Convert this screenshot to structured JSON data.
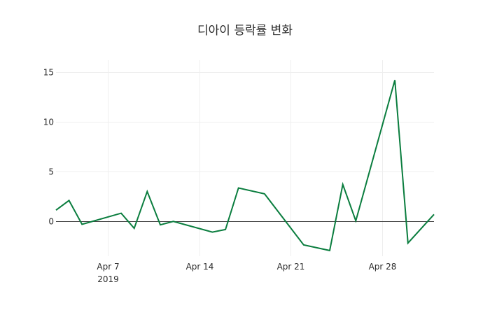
{
  "chart_data": {
    "type": "line",
    "title": "디아이 등락률 변화",
    "xlabel": "",
    "ylabel": "",
    "x": [
      "2019-04-03",
      "2019-04-04",
      "2019-04-05",
      "2019-04-08",
      "2019-04-09",
      "2019-04-10",
      "2019-04-11",
      "2019-04-12",
      "2019-04-15",
      "2019-04-16",
      "2019-04-17",
      "2019-04-19",
      "2019-04-22",
      "2019-04-24",
      "2019-04-25",
      "2019-04-26",
      "2019-04-29",
      "2019-04-30",
      "2019-05-02"
    ],
    "series": [
      {
        "name": "디아이",
        "color": "#0a7d3e",
        "values": [
          1.13,
          2.1,
          -0.3,
          0.82,
          -0.7,
          3.0,
          -0.35,
          0.0,
          -1.08,
          -0.82,
          3.36,
          2.77,
          -2.37,
          -2.93,
          3.71,
          0.05,
          14.2,
          -2.18,
          0.7
        ]
      }
    ],
    "xlim": [
      "2019-04-03",
      "2019-05-02"
    ],
    "ylim": [
      -3.5,
      16.2
    ],
    "x_ticks": [
      {
        "date": "2019-04-07",
        "label": "Apr 7",
        "sublabel": "2019"
      },
      {
        "date": "2019-04-14",
        "label": "Apr 14",
        "sublabel": ""
      },
      {
        "date": "2019-04-21",
        "label": "Apr 21",
        "sublabel": ""
      },
      {
        "date": "2019-04-28",
        "label": "Apr 28",
        "sublabel": ""
      }
    ],
    "y_ticks": [
      0,
      5,
      10,
      15
    ],
    "grid": true,
    "zero_line": true,
    "legend": "none"
  }
}
